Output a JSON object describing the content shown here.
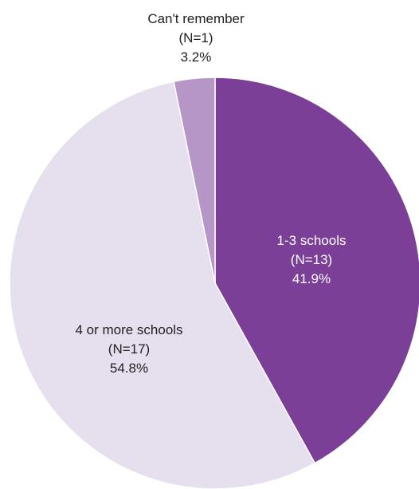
{
  "chart_data": {
    "type": "pie",
    "title": "",
    "start": "12 o'clock",
    "direction": "clockwise",
    "legend": "none",
    "slices": [
      {
        "label": "1-3 schools",
        "n_label": "(N=13)",
        "pct_label": "41.9%",
        "value": 13,
        "color": "#7c3f98",
        "text_color": "#ffffff"
      },
      {
        "label": "4 or more schools",
        "n_label": "(N=17)",
        "pct_label": "54.8%",
        "value": 17,
        "color": "#e6dfee",
        "text_color": "#222222"
      },
      {
        "label": "Can't remember",
        "n_label": "(N=1)",
        "pct_label": "3.2%",
        "value": 1,
        "color": "#b596c7",
        "text_color": "#222222"
      }
    ]
  }
}
